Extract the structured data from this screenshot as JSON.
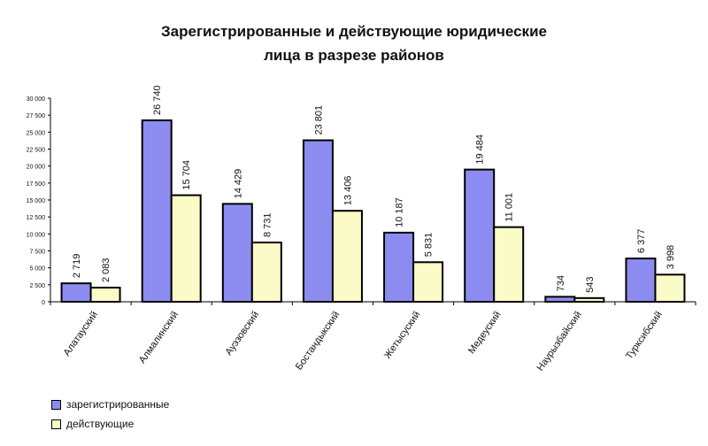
{
  "chart_data": {
    "type": "bar",
    "title": "Зарегистрированные и действующие юридические лица в разрезе районов",
    "title_lines": [
      "Зарегистрированные и действующие юридические",
      "лица в разрезе районов"
    ],
    "categories": [
      "Алатауский",
      "Алмалинский",
      "Ауэзовский",
      "Бостандыкский",
      "Жетысуский",
      "Медеуский",
      "Наурызбайский",
      "Турксибский"
    ],
    "series": [
      {
        "name": "зарегистрированные",
        "color": "#8c8cf0",
        "values": [
          2719,
          26740,
          14429,
          23801,
          10187,
          19484,
          734,
          6377
        ],
        "labels": [
          "2 719",
          "26 740",
          "14 429",
          "23 801",
          "10 187",
          "19 484",
          "734",
          "6 377"
        ]
      },
      {
        "name": "действующие",
        "color": "#fbfbc8",
        "values": [
          2083,
          15704,
          8731,
          13406,
          5831,
          11001,
          543,
          3998
        ],
        "labels": [
          "2 083",
          "15 704",
          "8 731",
          "13 406",
          "5 831",
          "11 001",
          "543",
          "3 998"
        ]
      }
    ],
    "ylim": [
      0,
      30000
    ],
    "yticks": [
      0,
      2500,
      5000,
      7500,
      10000,
      12500,
      15000,
      17500,
      20000,
      22500,
      25000,
      27500,
      30000
    ],
    "ytick_labels": [
      "0",
      "2 500",
      "5 000",
      "7 500",
      "10 000",
      "12 500",
      "15 000",
      "17 500",
      "20 000",
      "22 500",
      "25 000",
      "27 500",
      "30 000"
    ],
    "grid": false,
    "legend_position": "bottom-left"
  }
}
